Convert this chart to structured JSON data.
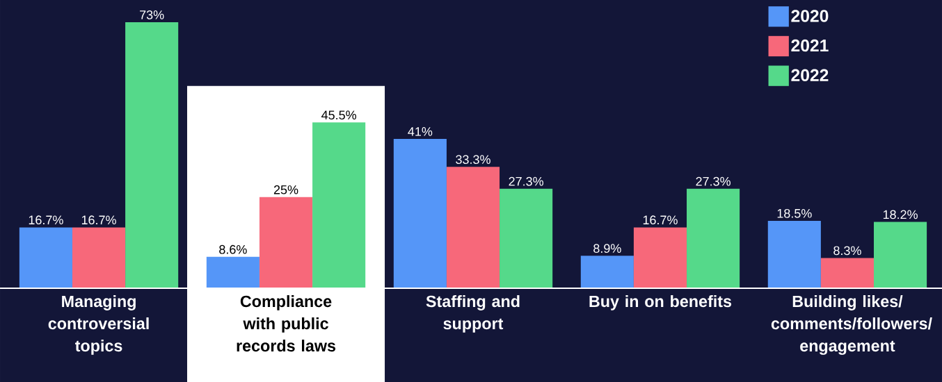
{
  "chart_data": {
    "type": "bar",
    "categories": [
      "Managing controversial topics",
      "Compliance with public records laws",
      "Staffing and support",
      "Buy in on benefits",
      "Building likes/ comments/followers/ engagement"
    ],
    "series": [
      {
        "name": "2020",
        "color": "#5596f8",
        "values": [
          16.7,
          8.6,
          41,
          8.9,
          18.5
        ],
        "value_labels": [
          "16.7%",
          "8.6%",
          "41%",
          "8.9%",
          "18.5%"
        ]
      },
      {
        "name": "2021",
        "color": "#f7687a",
        "values": [
          16.7,
          25,
          33.3,
          16.7,
          8.3
        ],
        "value_labels": [
          "16.7%",
          "25%",
          "33.3%",
          "16.7%",
          "8.3%"
        ]
      },
      {
        "name": "2022",
        "color": "#55d98a",
        "values": [
          73,
          45.5,
          27.3,
          27.3,
          18.2
        ],
        "value_labels": [
          "73%",
          "45.5%",
          "27.3%",
          "27.3%",
          "18.2%"
        ]
      }
    ],
    "bands": [
      {
        "axis": "x",
        "from": "Compliance with public records laws",
        "to": "Compliance with public records laws",
        "color": "#ffffff"
      }
    ],
    "legend": "top right"
  }
}
